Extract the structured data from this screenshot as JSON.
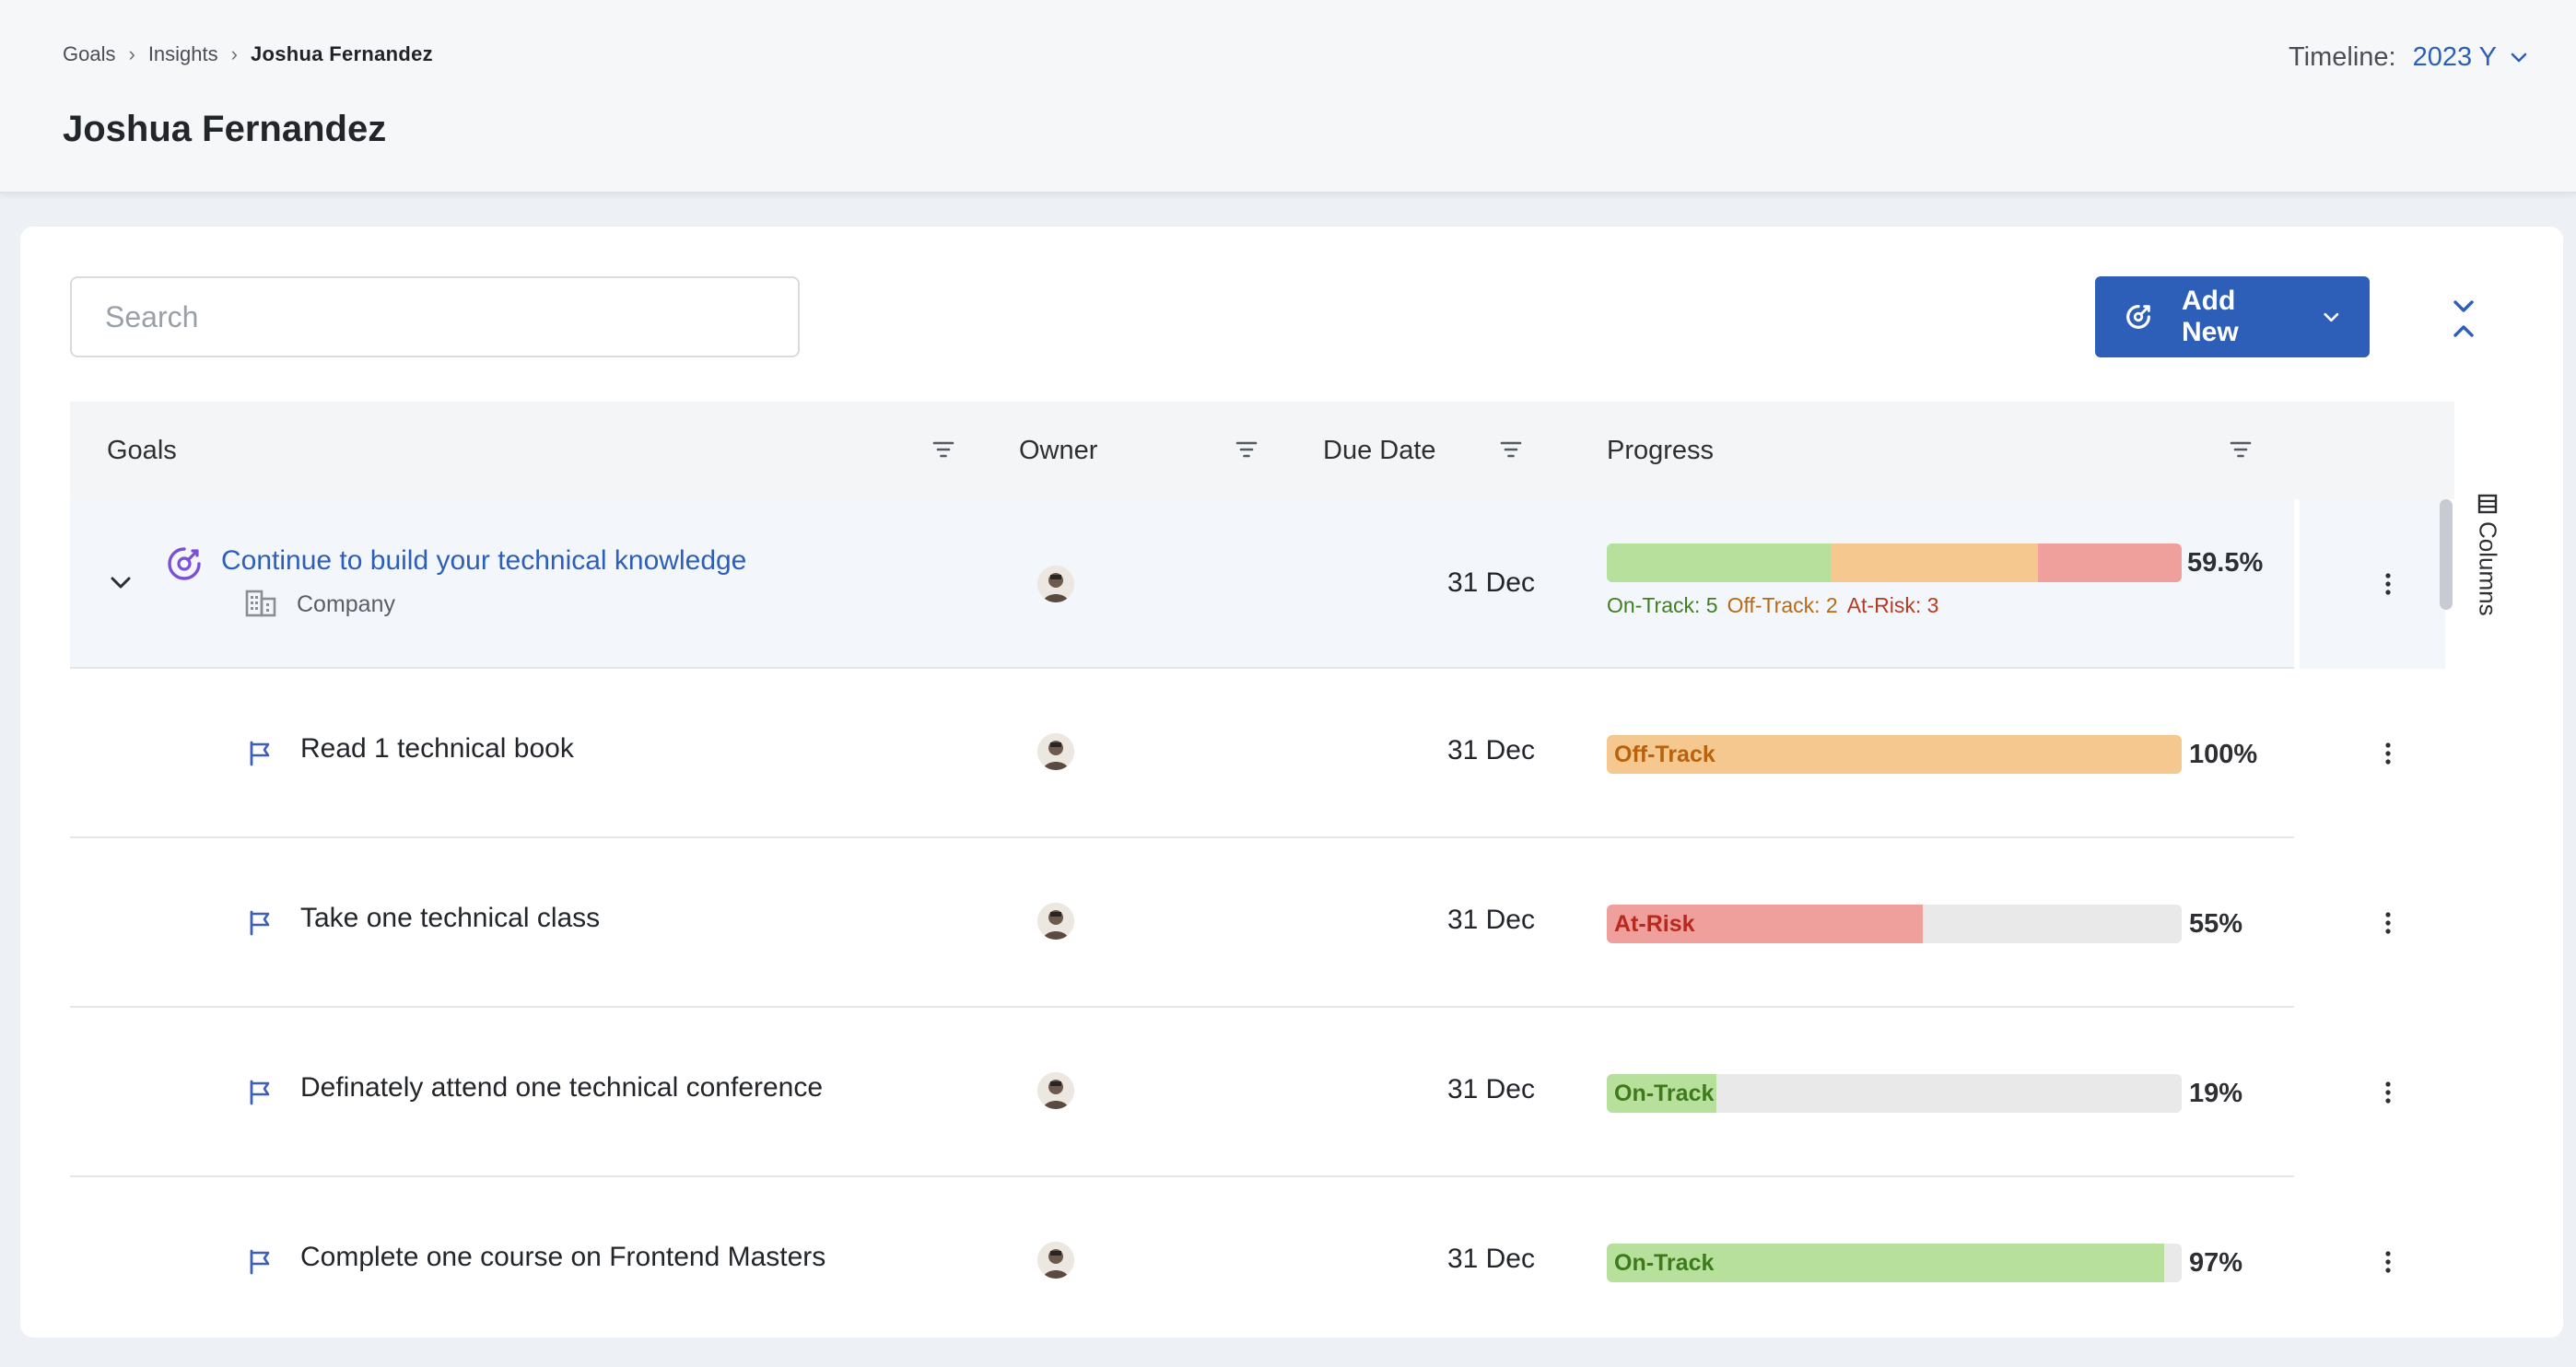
{
  "breadcrumb": [
    {
      "label": "Goals"
    },
    {
      "label": "Insights"
    },
    {
      "label": "Joshua Fernandez"
    }
  ],
  "page_title": "Joshua Fernandez",
  "timeline": {
    "label": "Timeline:",
    "value": "2023 Y"
  },
  "search": {
    "placeholder": "Search",
    "value": ""
  },
  "add_new": {
    "label": "Add New"
  },
  "columns_tab": {
    "label": "Columns"
  },
  "table": {
    "headers": {
      "goals": "Goals",
      "owner": "Owner",
      "due_date": "Due Date",
      "progress": "Progress"
    },
    "parent": {
      "title": "Continue to build your technical knowledge",
      "category": "Company",
      "due": "31 Dec",
      "percent": "59.5%",
      "segments": [
        {
          "status": "On-Track",
          "share": 0.39,
          "color": "#b7e09c"
        },
        {
          "status": "Off-Track",
          "share": 0.36,
          "color": "#f4c88e"
        },
        {
          "status": "At-Risk",
          "share": 0.25,
          "color": "#f0a09c"
        }
      ],
      "counts": [
        {
          "label": "On-Track: 5",
          "color": "#3f7f1f"
        },
        {
          "label": "Off-Track: 2",
          "color": "#b86a12"
        },
        {
          "label": "At-Risk: 3",
          "color": "#b83a22"
        }
      ]
    },
    "children": [
      {
        "title": "Read 1 technical book",
        "due": "31 Dec",
        "status": "Off-Track",
        "progress": 1.0,
        "percent": "100%",
        "fill": "#f4c88e",
        "text_color": "#b8620c"
      },
      {
        "title": "Take one technical class",
        "due": "31 Dec",
        "status": "At-Risk",
        "progress": 0.55,
        "percent": "55%",
        "fill": "#f0a09c",
        "text_color": "#b8281c"
      },
      {
        "title": "Definately attend one technical conference",
        "due": "31 Dec",
        "status": "On-Track",
        "progress": 0.19,
        "percent": "19%",
        "fill": "#b7e09c",
        "text_color": "#3d7a1c"
      },
      {
        "title": "Complete one course on Frontend Masters",
        "due": "31 Dec",
        "status": "On-Track",
        "progress": 0.97,
        "percent": "97%",
        "fill": "#b7e09c",
        "text_color": "#3d7a1c"
      }
    ]
  },
  "colors": {
    "accent": "#2e5fb8",
    "goal_icon": "#7b4fd6",
    "flag_icon": "#3d5fb8"
  }
}
